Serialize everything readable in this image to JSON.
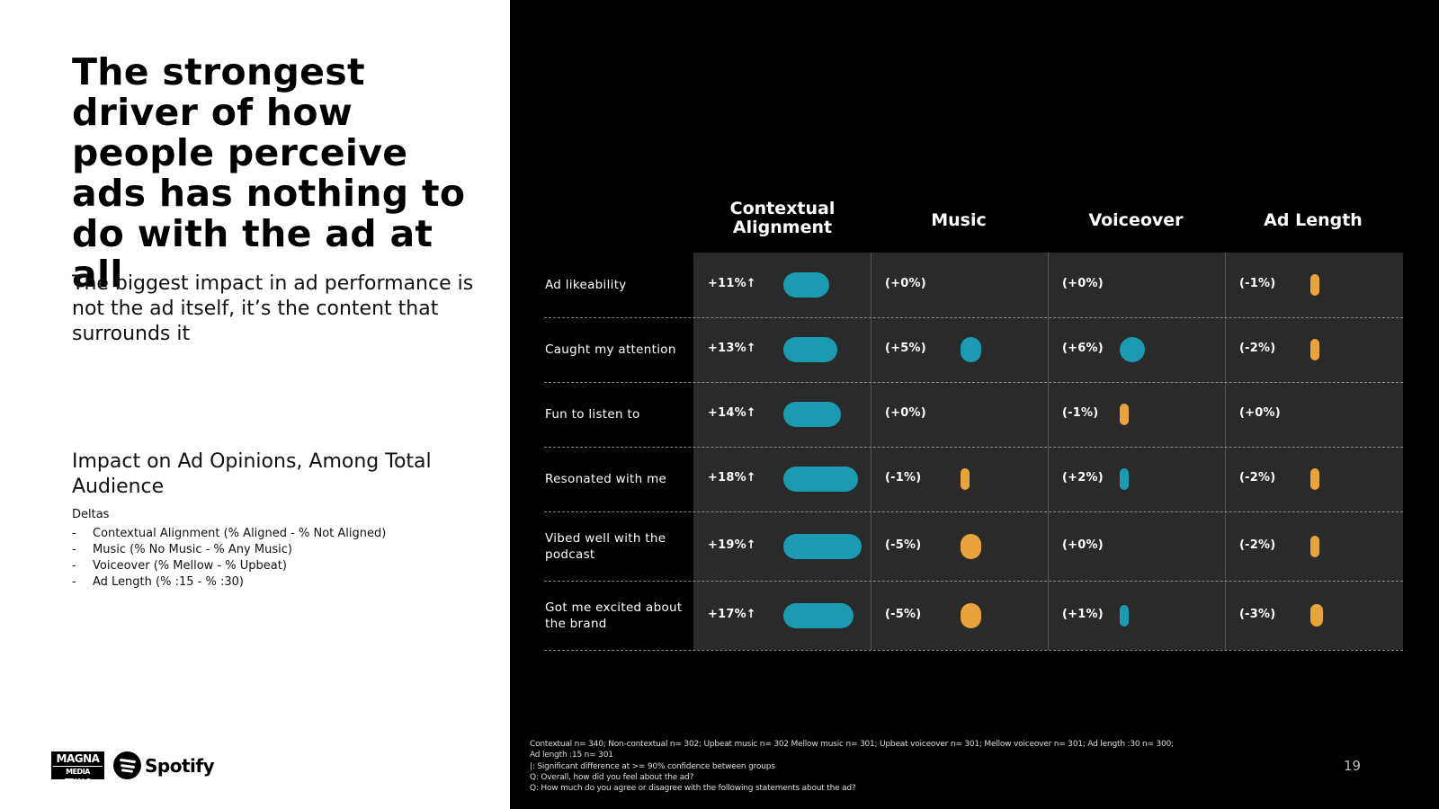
{
  "headline": "The strongest driver of how people perceive ads has nothing to do with the ad at all",
  "subhead": "The biggest impact in ad performance is not the ad itself, it’s the content that surrounds it",
  "impact_title": "Impact on Ad Opinions, Among Total Audience",
  "deltas": {
    "label": "Deltas",
    "items": [
      "Contextual Alignment (% Aligned - % Not Aligned)",
      "Music (% No Music - % Any Music)",
      "Voiceover (% Mellow - % Upbeat)",
      "Ad Length (% :15 - % :30)"
    ]
  },
  "logos": {
    "magna_top": "MAGNA",
    "magna_bottom": "MEDIA TRIALS",
    "spotify": "Spotify"
  },
  "colors": {
    "teal": "#1a9bb2",
    "orange": "#e8a33a",
    "cell_bg": "#2a2a2a"
  },
  "chart_data": {
    "type": "table",
    "columns": [
      "Contextual Alignment",
      "Music",
      "Voiceover",
      "Ad Length"
    ],
    "rows": [
      {
        "label": "Ad likeability",
        "labels": [
          "+11%↑",
          "(+0%)",
          "(+0%)",
          "(-1%)"
        ],
        "values": [
          11,
          0,
          0,
          -1
        ],
        "significant": [
          true,
          false,
          false,
          false
        ]
      },
      {
        "label": "Caught my attention",
        "labels": [
          "+13%↑",
          "(+5%)",
          "(+6%)",
          "(-2%)"
        ],
        "values": [
          13,
          5,
          6,
          -2
        ],
        "significant": [
          true,
          false,
          false,
          false
        ]
      },
      {
        "label": "Fun to listen to",
        "labels": [
          "+14%↑",
          "(+0%)",
          "(-1%)",
          "(+0%)"
        ],
        "values": [
          14,
          0,
          -1,
          0
        ],
        "significant": [
          true,
          false,
          false,
          false
        ]
      },
      {
        "label": "Resonated with me",
        "labels": [
          "+18%↑",
          "(-1%)",
          "(+2%)",
          "(-2%)"
        ],
        "values": [
          18,
          -1,
          2,
          -2
        ],
        "significant": [
          true,
          false,
          false,
          false
        ]
      },
      {
        "label": "Vibed well with the podcast",
        "labels": [
          "+19%↑",
          "(-5%)",
          "(+0%)",
          "(-2%)"
        ],
        "values": [
          19,
          -5,
          0,
          -2
        ],
        "significant": [
          true,
          false,
          false,
          false
        ]
      },
      {
        "label": "Got me excited about the brand",
        "labels": [
          "+17%↑",
          "(-5%)",
          "(+1%)",
          "(-3%)"
        ],
        "values": [
          17,
          -5,
          1,
          -3
        ],
        "significant": [
          true,
          false,
          false,
          false
        ]
      }
    ],
    "legend": {
      "positive": "teal",
      "negative": "orange"
    }
  },
  "footnotes": [
    "Contextual n= 340; Non-contextual n= 302; Upbeat music n= 302 Mellow music n= 301; Upbeat voiceover n= 301; Mellow voiceover n= 301; Ad length :30 n= 300;",
    "Ad length :15 n= 301",
    "|: Significant difference at >= 90% confidence between groups",
    "Q: Overall, how did you feel about the ad?",
    "Q: How much do you agree or disagree with the following statements about the ad?"
  ],
  "page_number": "19"
}
